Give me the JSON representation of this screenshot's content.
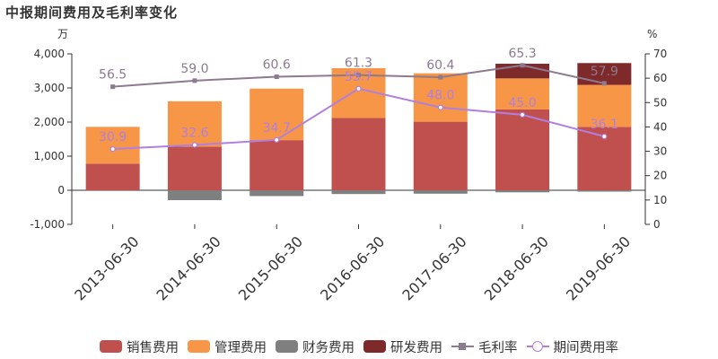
{
  "title": "中报期间费用及毛利率变化",
  "colors": {
    "sales": "#c0504d",
    "admin": "#f79646",
    "finance": "#7f7f7f",
    "rd": "#7f2a2a",
    "gross_margin": "#8c7a8f",
    "period_rate": "#b07fe0",
    "axis": "#333333",
    "grid": "#e6e6e6"
  },
  "legend": {
    "sales": "销售费用",
    "admin": "管理费用",
    "finance": "财务费用",
    "rd": "研发费用",
    "gross_margin": "毛利率",
    "period_rate": "期间费用率"
  },
  "chart_data": {
    "type": "bar",
    "title": "中报期间费用及毛利率变化",
    "categories": [
      "2013-06-30",
      "2014-06-30",
      "2015-06-30",
      "2016-06-30",
      "2017-06-30",
      "2018-06-30",
      "2019-06-30"
    ],
    "y_left": {
      "unit": "万",
      "ylim": [
        -1000,
        4000
      ],
      "ticks": [
        "-1,000",
        "0",
        "1,000",
        "2,000",
        "3,000",
        "4,000"
      ]
    },
    "y_right": {
      "unit": "%",
      "ylim": [
        0,
        70
      ],
      "ticks": [
        "0",
        "10",
        "20",
        "30",
        "40",
        "50",
        "60",
        "70"
      ]
    },
    "series": [
      {
        "name": "销售费用",
        "kind": "bar",
        "axis": "left",
        "values": [
          780,
          1280,
          1470,
          2120,
          2010,
          2370,
          1860
        ]
      },
      {
        "name": "管理费用",
        "kind": "bar",
        "axis": "left",
        "values": [
          1080,
          1330,
          1510,
          1460,
          1420,
          910,
          1230
        ]
      },
      {
        "name": "财务费用",
        "kind": "bar",
        "axis": "left",
        "values": [
          -20,
          -290,
          -170,
          -110,
          -100,
          -60,
          -40
        ]
      },
      {
        "name": "研发费用",
        "kind": "bar",
        "axis": "left",
        "values": [
          0,
          0,
          0,
          0,
          0,
          430,
          640
        ]
      },
      {
        "name": "毛利率",
        "kind": "line",
        "axis": "right",
        "values": [
          56.5,
          59.0,
          60.6,
          61.3,
          60.4,
          65.3,
          57.9
        ],
        "labels": [
          "56.5",
          "59.0",
          "60.6",
          "61.3",
          "60.4",
          "65.3",
          "57.9"
        ]
      },
      {
        "name": "期间费用率",
        "kind": "line",
        "axis": "right",
        "values": [
          30.9,
          32.6,
          34.7,
          55.7,
          48.0,
          45.0,
          36.1
        ],
        "labels": [
          "30.9",
          "32.6",
          "34.7",
          "55.7",
          "48.0",
          "45.0",
          "36.1"
        ]
      }
    ],
    "legend_position": "bottom",
    "grid": false
  }
}
